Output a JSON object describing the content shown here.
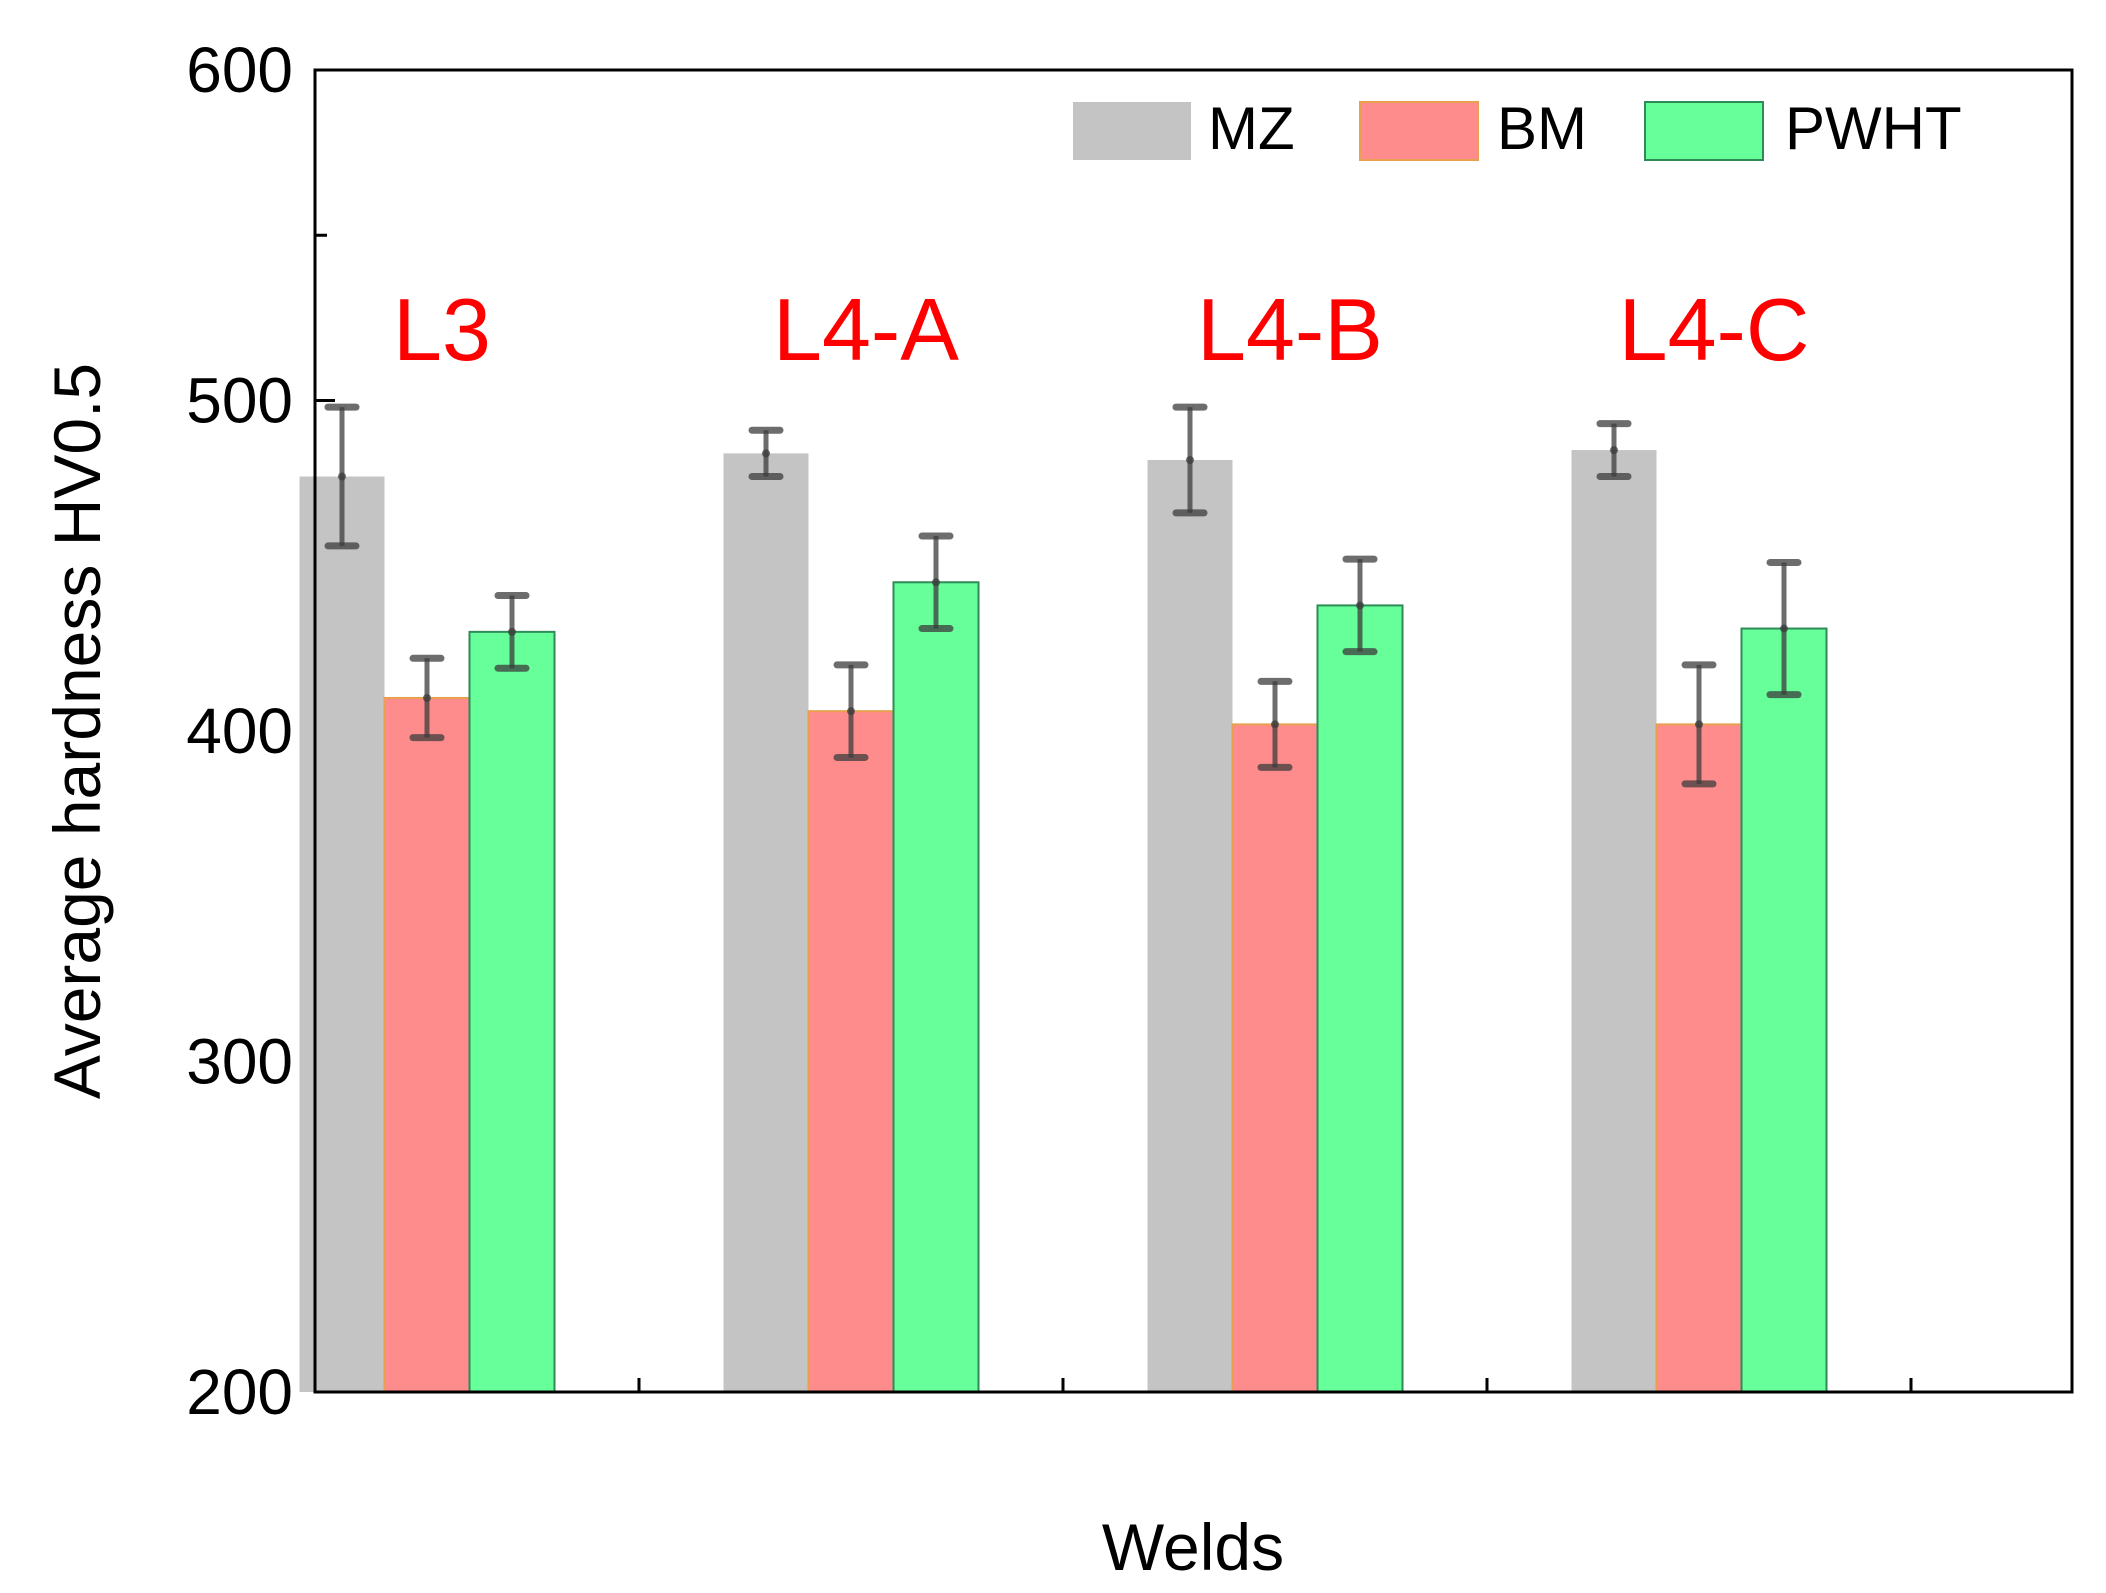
{
  "chart_data": {
    "type": "bar",
    "title": "",
    "xlabel": "Welds",
    "ylabel": "Average hardness HV0.5",
    "ylim": [
      200,
      600
    ],
    "yticks": [
      200,
      300,
      400,
      500,
      600
    ],
    "yminor_ticks": [
      250,
      350,
      450,
      550
    ],
    "categories": [
      "L3",
      "L4-A",
      "L4-B",
      "L4-C"
    ],
    "category_label_color": "#ff0000",
    "legend_position": "top-right",
    "grid": false,
    "series": [
      {
        "name": "MZ",
        "color": "#c4c4c4",
        "values": [
          477,
          484,
          482,
          485
        ],
        "errors": [
          21,
          7,
          16,
          8
        ]
      },
      {
        "name": "BM",
        "color": "#ff8c8c",
        "values": [
          410,
          406,
          402,
          402
        ],
        "errors": [
          12,
          14,
          13,
          18
        ]
      },
      {
        "name": "PWHT",
        "color": "#66ff99",
        "values": [
          430,
          445,
          438,
          431
        ],
        "errors": [
          11,
          14,
          14,
          20
        ]
      }
    ]
  }
}
